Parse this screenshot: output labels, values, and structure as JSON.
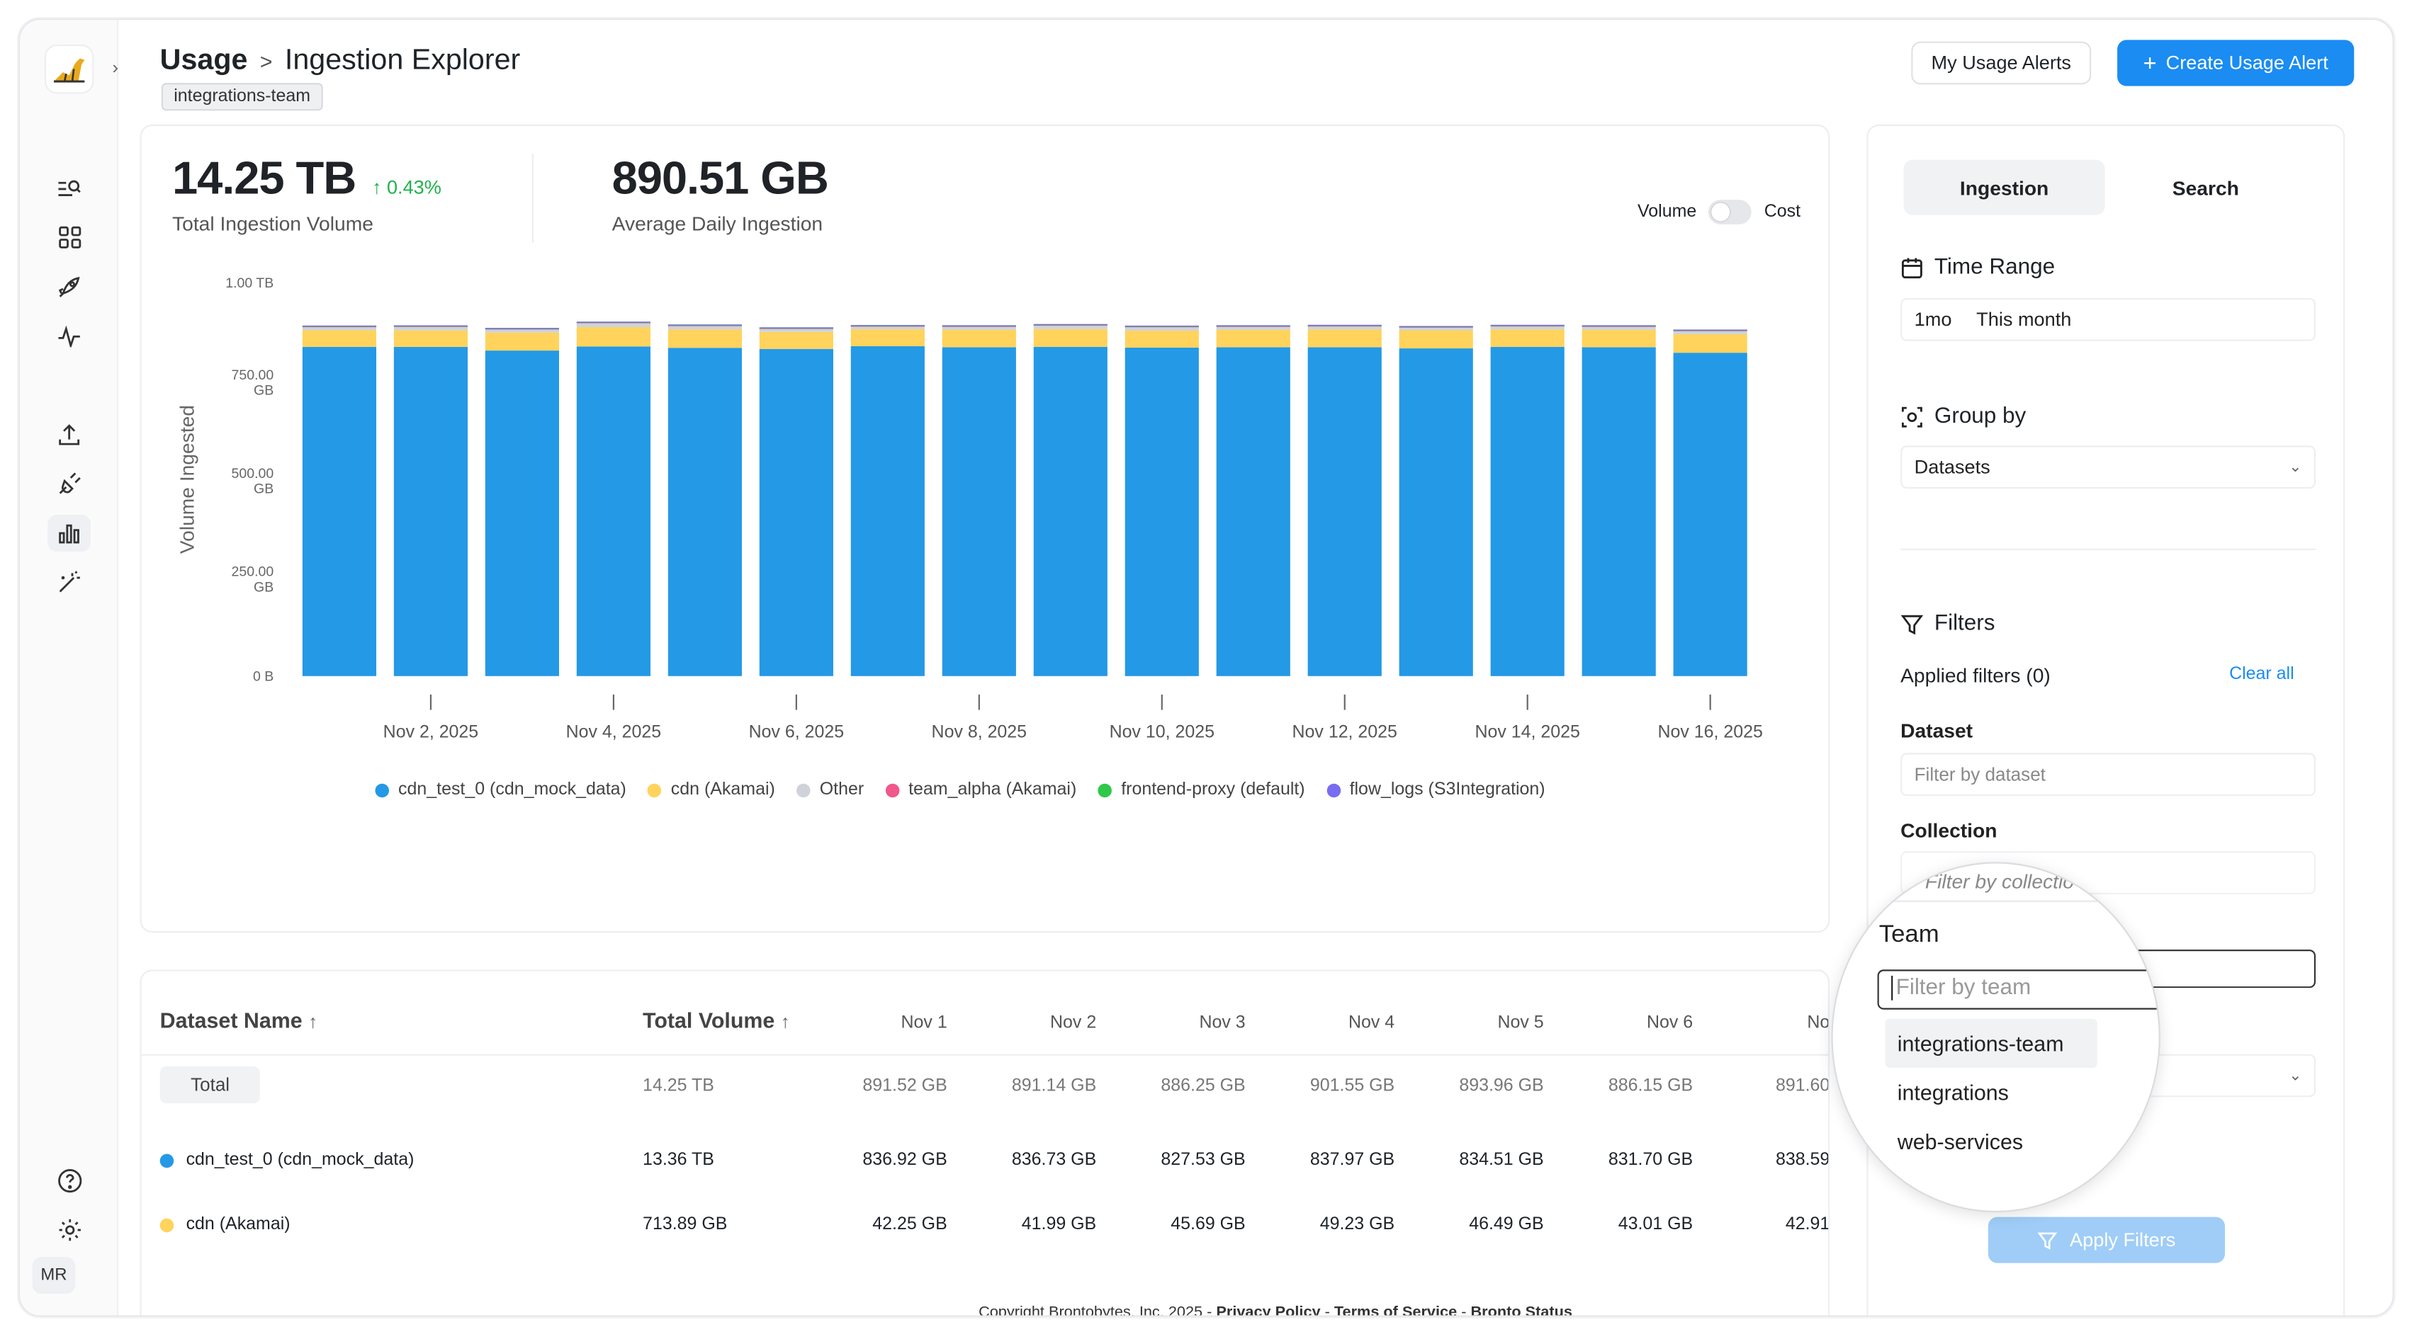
{
  "header": {
    "breadcrumb_root": "Usage",
    "breadcrumb_sep": ">",
    "breadcrumb_page": "Ingestion Explorer",
    "tooltip": "integrations-team",
    "my_alerts_label": "My Usage Alerts",
    "create_alert_label": "Create Usage Alert"
  },
  "sidebar": {
    "avatar": "MR",
    "icons": [
      "search-list-icon",
      "grid-icon",
      "rocket-icon",
      "pulse-icon",
      "upload-icon",
      "plug-icon",
      "bar-chart-icon",
      "magic-wand-icon",
      "help-icon",
      "gear-icon"
    ]
  },
  "stats": {
    "total_value": "14.25 TB",
    "total_delta": "0.43%",
    "total_label": "Total Ingestion Volume",
    "avg_value": "890.51 GB",
    "avg_label": "Average Daily Ingestion"
  },
  "toggle": {
    "left": "Volume",
    "right": "Cost"
  },
  "chart_data": {
    "type": "bar",
    "stacked": true,
    "ylabel": "Volume Ingested",
    "yticks": [
      "1.00 TB",
      "750.00 GB",
      "500.00 GB",
      "250.00 GB",
      "0 B"
    ],
    "ylim": [
      0,
      1000
    ],
    "xtick_labels": [
      "Nov 2, 2025",
      "Nov 4, 2025",
      "Nov 6, 2025",
      "Nov 8, 2025",
      "Nov 10, 2025",
      "Nov 12, 2025",
      "Nov 14, 2025",
      "Nov 16, 2025"
    ],
    "categories": [
      "Nov 1",
      "Nov 2",
      "Nov 3",
      "Nov 4",
      "Nov 5",
      "Nov 6",
      "Nov 7",
      "Nov 8",
      "Nov 9",
      "Nov 10",
      "Nov 11",
      "Nov 12",
      "Nov 13",
      "Nov 14",
      "Nov 15",
      "Nov 16"
    ],
    "series": [
      {
        "name": "cdn_test_0 (cdn_mock_data)",
        "color": "#2499e6",
        "values": [
          836.92,
          836.73,
          827.53,
          837.97,
          834.51,
          831.7,
          838.59,
          836,
          837,
          835,
          836,
          836,
          833,
          837,
          836,
          822
        ]
      },
      {
        "name": "cdn (Akamai)",
        "color": "#ffd35c",
        "values": [
          42.25,
          41.99,
          45.69,
          49.23,
          46.49,
          43.01,
          42.91,
          44,
          45,
          43,
          44,
          45,
          46,
          44,
          44,
          47
        ]
      },
      {
        "name": "Other",
        "color": "#cfd3d9",
        "values": [
          8,
          9,
          8,
          10,
          9,
          8,
          7,
          8,
          9,
          9,
          8,
          8,
          7,
          8,
          8,
          8
        ]
      },
      {
        "name": "team_alpha (Akamai)",
        "color": "#f0578a",
        "values": [
          2,
          2,
          2,
          2,
          2,
          2,
          2,
          2,
          2,
          2,
          2,
          2,
          2,
          2,
          2,
          2
        ]
      },
      {
        "name": "frontend-proxy (default)",
        "color": "#2fc84a",
        "values": [
          1,
          1,
          1,
          1,
          1,
          1,
          1,
          1,
          1,
          1,
          1,
          1,
          1,
          1,
          1,
          1
        ]
      },
      {
        "name": "flow_logs (S3Integration)",
        "color": "#7a6cf0",
        "values": [
          1,
          1,
          1,
          1,
          1,
          1,
          1,
          1,
          1,
          1,
          1,
          1,
          1,
          1,
          1,
          1
        ]
      }
    ],
    "legend": "bottom",
    "grid": false
  },
  "table": {
    "col_name": "Dataset Name",
    "col_volume": "Total Volume",
    "days": [
      "Nov 1",
      "Nov 2",
      "Nov 3",
      "Nov 4",
      "Nov 5",
      "Nov 6",
      "No"
    ],
    "total_label": "Total",
    "total_volume": "14.25 TB",
    "total_days": [
      "891.52 GB",
      "891.14 GB",
      "886.25 GB",
      "901.55 GB",
      "893.96 GB",
      "886.15 GB",
      "891.60"
    ],
    "rows": [
      {
        "name": "cdn_test_0 (cdn_mock_data)",
        "color": "#2499e6",
        "volume": "13.36 TB",
        "days": [
          "836.92 GB",
          "836.73 GB",
          "827.53 GB",
          "837.97 GB",
          "834.51 GB",
          "831.70 GB",
          "838.59"
        ]
      },
      {
        "name": "cdn (Akamai)",
        "color": "#ffd35c",
        "volume": "713.89 GB",
        "days": [
          "42.25 GB",
          "41.99 GB",
          "45.69 GB",
          "49.23 GB",
          "46.49 GB",
          "43.01 GB",
          "42.91"
        ]
      }
    ]
  },
  "panel": {
    "tab_ingestion": "Ingestion",
    "tab_search": "Search",
    "time_range_title": "Time Range",
    "time_range_short": "1mo",
    "time_range_value": "This month",
    "group_by_title": "Group by",
    "group_by_value": "Datasets",
    "filters_title": "Filters",
    "applied_filters": "Applied filters (0)",
    "clear_all": "Clear all",
    "dataset_label": "Dataset",
    "dataset_placeholder": "Filter by dataset",
    "collection_label": "Collection",
    "apply_label": "Apply Filters"
  },
  "magnifier": {
    "ghost_text": "Filter by collectio",
    "team_label": "Team",
    "team_placeholder": "Filter by team",
    "options": [
      "integrations-team",
      "integrations",
      "web-services"
    ]
  },
  "footer": {
    "copyright": "Copyright Brontobytes, Inc. 2025 - ",
    "privacy": "Privacy Policy",
    "terms": "Terms of Service",
    "status": "Bronto Status",
    "dash": " - "
  }
}
